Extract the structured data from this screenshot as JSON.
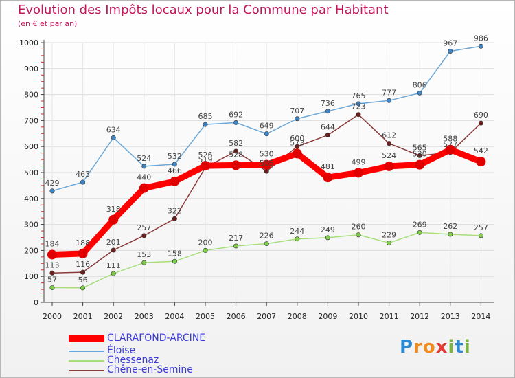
{
  "title": "Evolution des Impôts locaux pour la Commune par Habitant",
  "subtitle": "(en € et par an)",
  "logo": "Proxiti",
  "chart_data": {
    "type": "line",
    "title": "Evolution des Impôts locaux pour la Commune par Habitant",
    "ylabel": "(en € et par an)",
    "xlabel": "",
    "ylim": [
      0,
      1000
    ],
    "yticks": [
      "0",
      "100",
      "200",
      "300",
      "400",
      "500",
      "600",
      "700",
      "800",
      "900",
      "1000"
    ],
    "yticks_values": [
      0,
      100,
      200,
      300,
      400,
      500,
      600,
      700,
      800,
      900,
      1000
    ],
    "categories": [
      "2000",
      "2001",
      "2002",
      "2003",
      "2004",
      "2005",
      "2006",
      "2007",
      "2008",
      "2009",
      "2010",
      "2011",
      "2012",
      "2013",
      "2014"
    ],
    "legend_position": "bottom-left",
    "series": [
      {
        "name": "CLARAFOND-ARCINE",
        "color": "#ff0000",
        "marker": "#e00000",
        "values": [
          184,
          188,
          318,
          440,
          466,
          526,
          528,
          530,
          573,
          481,
          499,
          524,
          530,
          588,
          542
        ],
        "labels": [
          "184",
          "188",
          "318",
          "440",
          "466",
          "526",
          "528",
          "530",
          "573",
          "481",
          "499",
          "524",
          "530",
          "588",
          "542"
        ]
      },
      {
        "name": "Éloise",
        "color": "#6aa7d8",
        "marker": "#3f86c9",
        "values": [
          429,
          463,
          634,
          524,
          532,
          685,
          692,
          649,
          707,
          736,
          765,
          777,
          806,
          967,
          986
        ],
        "labels": [
          "429",
          "463",
          "634",
          "524",
          "532",
          "685",
          "692",
          "649",
          "707",
          "736",
          "765",
          "777",
          "806",
          "967",
          "986"
        ]
      },
      {
        "name": "Chessenaz",
        "color": "#a6df7a",
        "marker": "#7fcf4a",
        "values": [
          57,
          56,
          111,
          153,
          158,
          200,
          217,
          226,
          244,
          249,
          260,
          229,
          269,
          262,
          257
        ],
        "labels": [
          "57",
          "56",
          "111",
          "153",
          "158",
          "200",
          "217",
          "226",
          "244",
          "249",
          "260",
          "229",
          "269",
          "262",
          "257"
        ]
      },
      {
        "name": "Chêne-en-Semine",
        "color": "#8b3a3a",
        "marker": "#6b1f1f",
        "values": [
          113,
          116,
          201,
          257,
          322,
          519,
          582,
          505,
          600,
          644,
          723,
          612,
          565,
          577,
          690
        ],
        "labels": [
          "113",
          "116",
          "201",
          "257",
          "322",
          "519",
          "582",
          "505",
          "600",
          "644",
          "723",
          "612",
          "565",
          "577",
          "690"
        ]
      }
    ]
  }
}
